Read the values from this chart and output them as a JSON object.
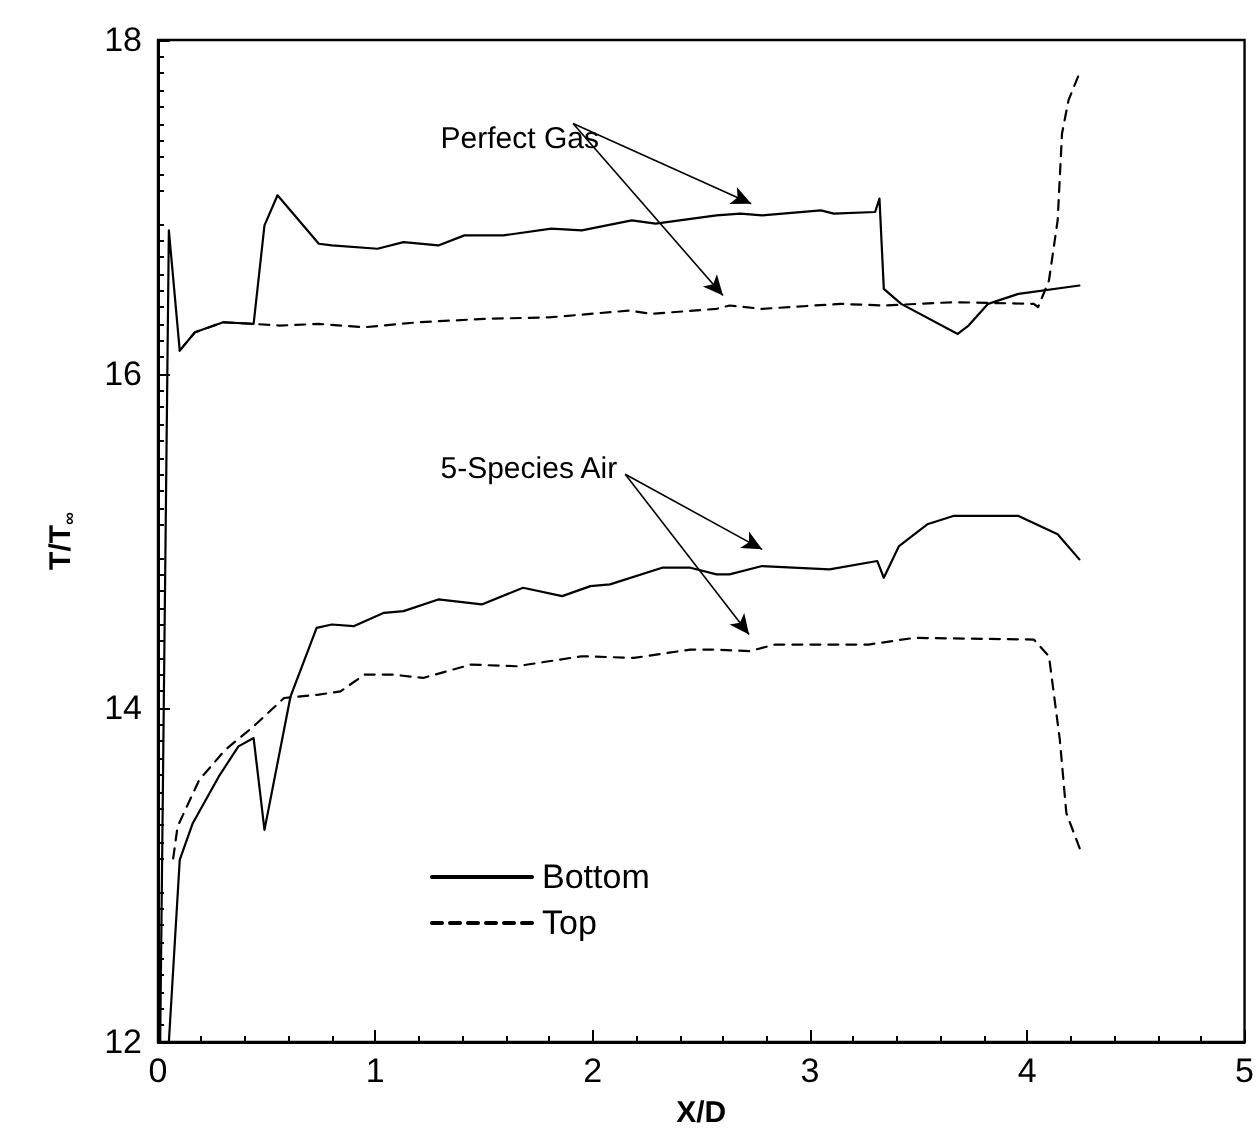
{
  "chart_data": {
    "type": "line",
    "xlabel": "X/D",
    "ylabel": "T/T$_{∞}$",
    "xlim": [
      0,
      5
    ],
    "xticks": [
      0,
      1,
      2,
      3,
      4,
      5
    ],
    "ylim": [
      12,
      18
    ],
    "yticks": [
      12,
      14,
      16,
      18
    ],
    "grid": false,
    "legend": "bottom left",
    "marker": "none",
    "annotations": [
      "Perfect Gas",
      "5-Species Air"
    ],
    "series": [
      {
        "name": "Bottom",
        "color": "#000000",
        "line_style": "solid",
        "x": [
          0.01,
          0.05,
          0.1,
          0.17,
          0.3,
          0.44,
          0.49,
          0.55,
          0.74,
          0.8,
          1.01,
          1.13,
          1.29,
          1.41,
          1.59,
          1.81,
          1.95,
          2.18,
          2.29,
          2.57,
          2.68,
          2.78,
          3.05,
          3.11,
          3.3,
          3.32,
          3.34,
          3.42,
          3.68,
          3.73,
          3.82,
          3.96,
          4.24
        ],
        "values": [
          12.0,
          16.86,
          16.14,
          16.25,
          16.31,
          16.3,
          16.89,
          17.07,
          16.78,
          16.77,
          16.75,
          16.79,
          16.77,
          16.83,
          16.83,
          16.87,
          16.86,
          16.92,
          16.9,
          16.95,
          16.96,
          16.95,
          16.98,
          16.96,
          16.97,
          17.05,
          16.51,
          16.42,
          16.24,
          16.29,
          16.42,
          16.48,
          16.53
        ]
      },
      {
        "name": "Top",
        "color": "#000000",
        "line_style": "dashed",
        "x": [
          0.1,
          0.17,
          0.3,
          0.44,
          0.56,
          0.74,
          0.95,
          1.2,
          1.5,
          1.81,
          2.17,
          2.27,
          2.57,
          2.63,
          2.78,
          3.14,
          3.34,
          3.66,
          4.03,
          4.05,
          4.1,
          4.14,
          4.16,
          4.19,
          4.24
        ],
        "values": [
          16.14,
          16.25,
          16.31,
          16.3,
          16.29,
          16.3,
          16.28,
          16.31,
          16.33,
          16.34,
          16.38,
          16.36,
          16.39,
          16.41,
          16.39,
          16.42,
          16.41,
          16.43,
          16.42,
          16.4,
          16.56,
          16.92,
          17.44,
          17.64,
          17.8
        ]
      },
      {
        "color": "#000000",
        "line_style": "solid",
        "x": [
          0.05,
          0.1,
          0.16,
          0.28,
          0.37,
          0.44,
          0.49,
          0.61,
          0.73,
          0.8,
          0.9,
          1.04,
          1.13,
          1.29,
          1.49,
          1.68,
          1.86,
          1.99,
          2.08,
          2.32,
          2.45,
          2.57,
          2.63,
          2.78,
          3.09,
          3.31,
          3.34,
          3.41,
          3.54,
          3.66,
          3.96,
          4.14,
          4.24
        ],
        "values": [
          12.0,
          13.09,
          13.31,
          13.59,
          13.77,
          13.82,
          13.27,
          14.07,
          14.48,
          14.5,
          14.49,
          14.57,
          14.58,
          14.65,
          14.62,
          14.72,
          14.67,
          14.73,
          14.74,
          14.84,
          14.84,
          14.8,
          14.8,
          14.85,
          14.83,
          14.88,
          14.78,
          14.97,
          15.1,
          15.15,
          15.15,
          15.04,
          14.89
        ]
      },
      {
        "color": "#000000",
        "line_style": "dashed",
        "x": [
          0.07,
          0.09,
          0.19,
          0.31,
          0.44,
          0.58,
          0.74,
          0.84,
          0.95,
          1.08,
          1.22,
          1.44,
          1.65,
          1.95,
          2.19,
          2.45,
          2.57,
          2.72,
          2.84,
          3.27,
          3.48,
          4.03,
          4.1,
          4.15,
          4.18,
          4.25
        ],
        "values": [
          13.1,
          13.29,
          13.57,
          13.75,
          13.89,
          14.06,
          14.08,
          14.1,
          14.2,
          14.2,
          14.18,
          14.26,
          14.25,
          14.31,
          14.3,
          14.35,
          14.35,
          14.34,
          14.38,
          14.38,
          14.42,
          14.41,
          14.31,
          13.81,
          13.37,
          13.13
        ]
      }
    ]
  }
}
